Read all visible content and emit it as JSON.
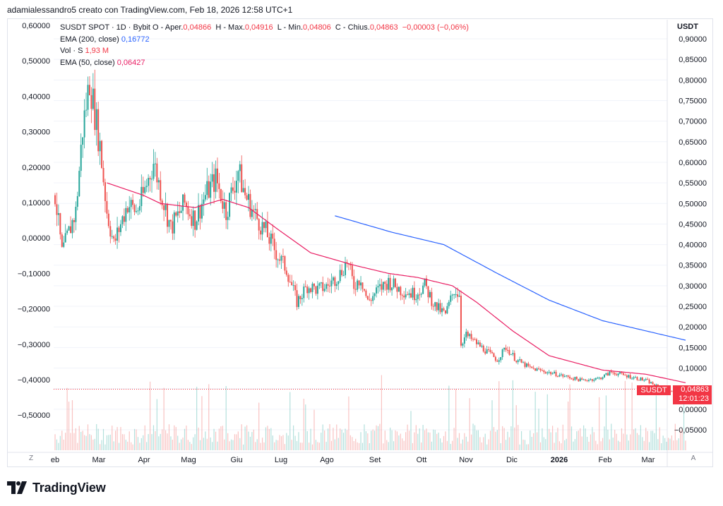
{
  "header": {
    "text": "adamialessandro5 creato con TradingView.com, Feb 18, 2026 12:58 UTC+1"
  },
  "legend": {
    "ohlc_prefix": "SUSDT SPOT · 1D · Bybit  O - Aper.",
    "open": "0,04866",
    "high_label": "H - Max.",
    "high": "0,04916",
    "low_label": "L - Min.",
    "low": "0,04806",
    "close_label": "C - Chius.",
    "close": "0,04863",
    "change": "−0,00003 (−0,06%)",
    "ema200_label": "EMA (200, close)",
    "ema200_value": "0,16772",
    "vol_label": "Vol · S",
    "vol_value": "1,93 M",
    "ema50_label": "EMA (50, close)",
    "ema50_value": "0,06427"
  },
  "axis": {
    "currency": "USDT",
    "symbol_tag": "SUSDT",
    "last_price": "0,04863",
    "countdown": "12:01:23"
  },
  "buttons": {
    "z": "Z",
    "a": "A"
  },
  "logo": {
    "text": "TradingView"
  },
  "colors": {
    "up": "#26a69a",
    "down": "#ef5350",
    "ema200": "#2962ff",
    "ema50": "#e91e63",
    "grid": "#f0f3fa",
    "price_line": "#f23645"
  },
  "chart_data": {
    "type": "candlestick",
    "symbol": "SUSDT",
    "exchange": "Bybit",
    "timeframe": "1D",
    "left_axis_ticks": [
      "0,60000",
      "0,50000",
      "0,40000",
      "0,30000",
      "0,20000",
      "0,10000",
      "0,00000",
      "−0,10000",
      "−0,20000",
      "−0,30000",
      "−0,40000",
      "−0,50000"
    ],
    "right_axis_ticks": [
      "0,90000",
      "0,85000",
      "0,80000",
      "0,75000",
      "0,70000",
      "0,65000",
      "0,60000",
      "0,55000",
      "0,50000",
      "0,45000",
      "0,40000",
      "0,35000",
      "0,30000",
      "0,25000",
      "0,20000",
      "0,15000",
      "0,10000",
      "0,05000",
      "0,00000",
      "−0,05000"
    ],
    "right_axis_range": [
      -0.08,
      0.92
    ],
    "x_labels": [
      "eb",
      "Mar",
      "Apr",
      "Mag",
      "Giu",
      "Lug",
      "Ago",
      "Set",
      "Ott",
      "Nov",
      "Dic",
      "2026",
      "Feb",
      "Mar"
    ],
    "price_anchors": [
      [
        "2025-02-18",
        0.52
      ],
      [
        "2025-02-22",
        0.38
      ],
      [
        "2025-03-02",
        0.48
      ],
      [
        "2025-03-06",
        0.68
      ],
      [
        "2025-03-10",
        0.8
      ],
      [
        "2025-03-16",
        0.64
      ],
      [
        "2025-03-20",
        0.48
      ],
      [
        "2025-03-24",
        0.4
      ],
      [
        "2025-04-01",
        0.5
      ],
      [
        "2025-04-06",
        0.48
      ],
      [
        "2025-04-10",
        0.52
      ],
      [
        "2025-04-16",
        0.6
      ],
      [
        "2025-04-22",
        0.5
      ],
      [
        "2025-04-26",
        0.44
      ],
      [
        "2025-05-04",
        0.5
      ],
      [
        "2025-05-10",
        0.46
      ],
      [
        "2025-05-16",
        0.52
      ],
      [
        "2025-05-22",
        0.56
      ],
      [
        "2025-05-28",
        0.48
      ],
      [
        "2025-06-04",
        0.58
      ],
      [
        "2025-06-08",
        0.52
      ],
      [
        "2025-06-14",
        0.47
      ],
      [
        "2025-06-20",
        0.43
      ],
      [
        "2025-06-26",
        0.38
      ],
      [
        "2025-07-02",
        0.34
      ],
      [
        "2025-07-08",
        0.26
      ],
      [
        "2025-07-14",
        0.3
      ],
      [
        "2025-07-20",
        0.29
      ],
      [
        "2025-07-26",
        0.3
      ],
      [
        "2025-08-02",
        0.33
      ],
      [
        "2025-08-06",
        0.36
      ],
      [
        "2025-08-10",
        0.3
      ],
      [
        "2025-08-14",
        0.32
      ],
      [
        "2025-08-18",
        0.26
      ],
      [
        "2025-08-24",
        0.29
      ],
      [
        "2025-08-30",
        0.31
      ],
      [
        "2025-09-06",
        0.29
      ],
      [
        "2025-09-14",
        0.28
      ],
      [
        "2025-09-20",
        0.3
      ],
      [
        "2025-09-26",
        0.25
      ],
      [
        "2025-10-02",
        0.23
      ],
      [
        "2025-10-07",
        0.29
      ],
      [
        "2025-10-10",
        0.28
      ],
      [
        "2025-10-11",
        0.16
      ],
      [
        "2025-10-14",
        0.18
      ],
      [
        "2025-10-20",
        0.16
      ],
      [
        "2025-10-26",
        0.14
      ],
      [
        "2025-11-01",
        0.12
      ],
      [
        "2025-11-06",
        0.15
      ],
      [
        "2025-11-12",
        0.12
      ],
      [
        "2025-11-20",
        0.1
      ],
      [
        "2025-11-30",
        0.09
      ],
      [
        "2025-12-10",
        0.08
      ],
      [
        "2025-12-20",
        0.07
      ],
      [
        "2025-12-30",
        0.075
      ],
      [
        "2026-01-06",
        0.09
      ],
      [
        "2026-01-16",
        0.08
      ],
      [
        "2026-01-26",
        0.07
      ],
      [
        "2026-02-04",
        0.05
      ],
      [
        "2026-02-10",
        0.045
      ],
      [
        "2026-02-18",
        0.0486
      ]
    ],
    "ema200_anchors": [
      [
        "2025-07-30",
        0.47
      ],
      [
        "2025-09-01",
        0.43
      ],
      [
        "2025-10-01",
        0.4
      ],
      [
        "2025-11-01",
        0.33
      ],
      [
        "2025-12-01",
        0.265
      ],
      [
        "2026-01-01",
        0.215
      ],
      [
        "2026-02-18",
        0.1677
      ]
    ],
    "ema50_anchors": [
      [
        "2025-03-20",
        0.55
      ],
      [
        "2025-04-10",
        0.52
      ],
      [
        "2025-04-20",
        0.5
      ],
      [
        "2025-05-10",
        0.49
      ],
      [
        "2025-05-26",
        0.51
      ],
      [
        "2025-06-10",
        0.49
      ],
      [
        "2025-06-26",
        0.44
      ],
      [
        "2025-07-16",
        0.38
      ],
      [
        "2025-08-10",
        0.35
      ],
      [
        "2025-08-30",
        0.33
      ],
      [
        "2025-09-16",
        0.32
      ],
      [
        "2025-10-06",
        0.3
      ],
      [
        "2025-10-20",
        0.26
      ],
      [
        "2025-11-10",
        0.19
      ],
      [
        "2025-12-01",
        0.13
      ],
      [
        "2026-01-01",
        0.095
      ],
      [
        "2026-01-26",
        0.085
      ],
      [
        "2026-02-18",
        0.0643
      ]
    ],
    "last_price": 0.04863
  }
}
